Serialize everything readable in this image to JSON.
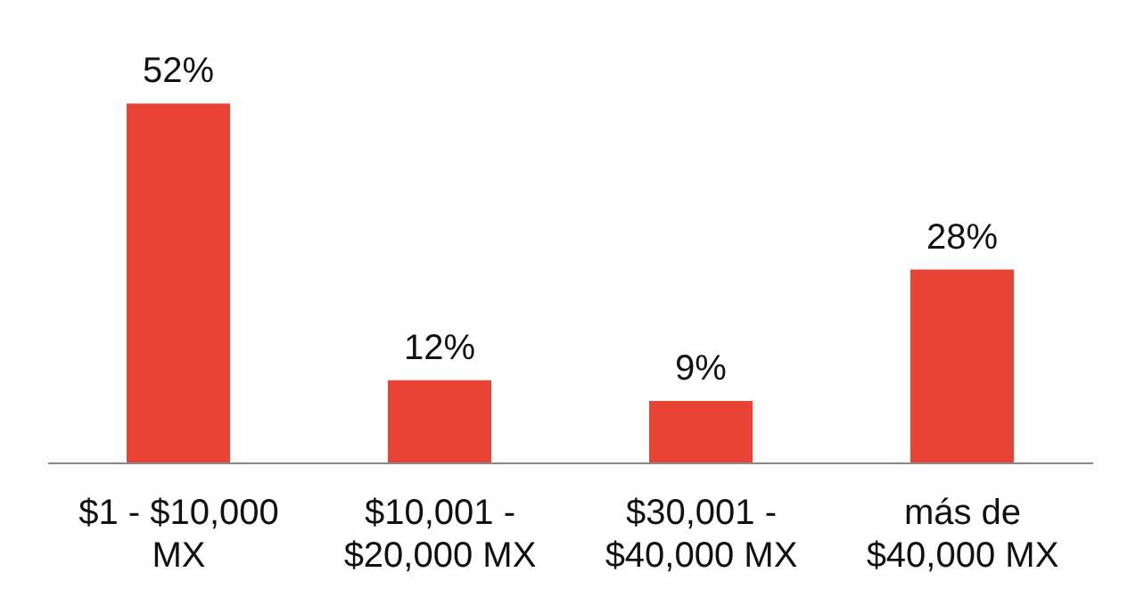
{
  "chart_data": {
    "type": "bar",
    "categories": [
      "$1 - $10,000 MX",
      "$10,001 - $20,000 MX",
      "$30,001 - $40,000 MX",
      "más de $40,000 MX"
    ],
    "values": [
      52,
      12,
      9,
      28
    ],
    "value_labels": [
      "52%",
      "12%",
      "9%",
      "28%"
    ],
    "color": "#e94335"
  }
}
